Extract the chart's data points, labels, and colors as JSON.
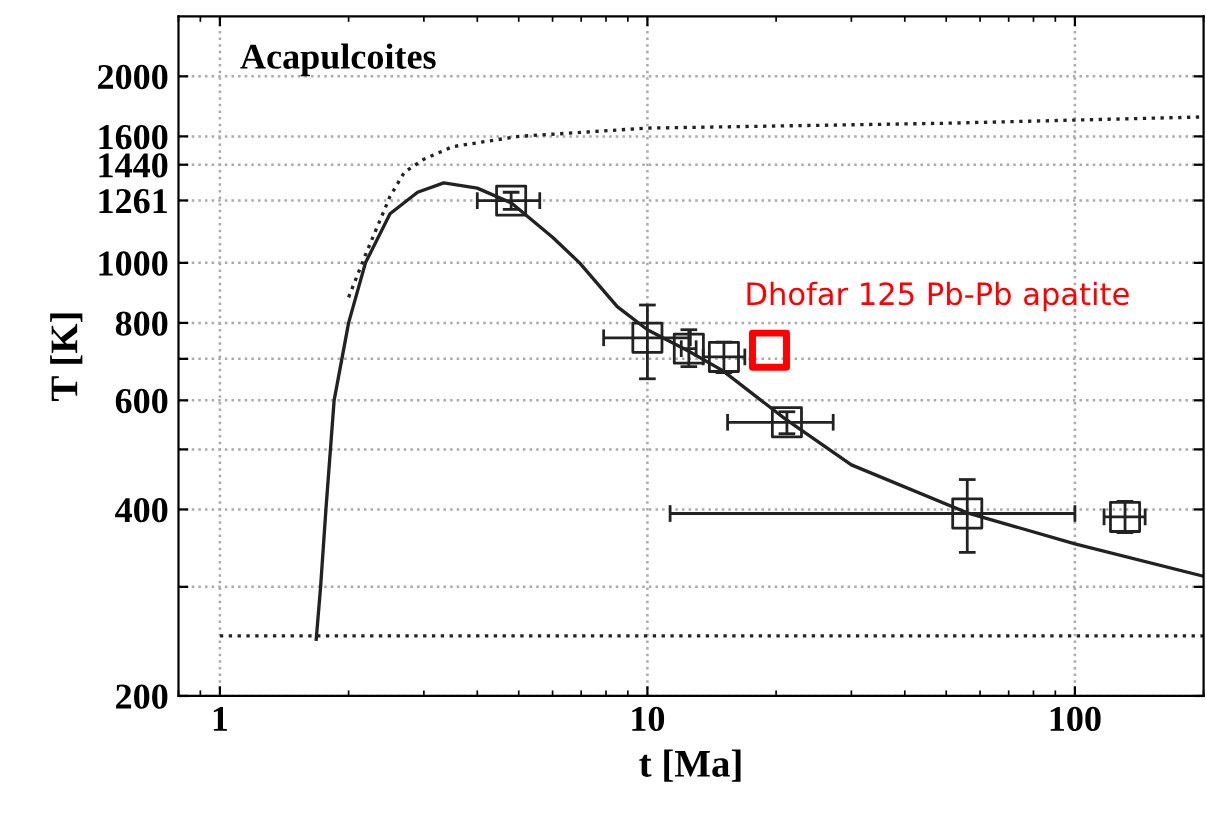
{
  "chart_data": {
    "type": "scatter",
    "xlabel": "t [Ma]",
    "ylabel": "T [K]",
    "annotations": [
      "Acapulcoites"
    ],
    "log": "xy",
    "grid": true,
    "marker": "square",
    "xlim": [
      0.8,
      200
    ],
    "xticks": [
      1,
      10,
      100
    ],
    "ylim": [
      200,
      2500
    ],
    "yticks": [
      200,
      {
        "value": 300,
        "label": null
      },
      400,
      {
        "value": 500,
        "label": null
      },
      600,
      {
        "value": 700,
        "label": null
      },
      800,
      1000,
      1261,
      1440,
      1600,
      2000
    ],
    "series": [
      {
        "type": "line",
        "marker": "none",
        "line_style": "solid",
        "color": "#222222",
        "x": [
          1.68,
          1.72,
          1.77,
          1.85,
          2.0,
          2.19,
          2.5,
          2.9,
          3.34,
          4.0,
          4.8,
          6.0,
          6.94,
          8.5,
          10,
          12.5,
          15,
          21,
          30,
          56,
          100,
          200
        ],
        "values": [
          247,
          300,
          400,
          600,
          800,
          1000,
          1200,
          1300,
          1346,
          1320,
          1250,
          1100,
          1000,
          850,
          780,
          720,
          670,
          560,
          472,
          395,
          352,
          312
        ]
      },
      {
        "type": "line",
        "marker": "none",
        "line_style": "dotted",
        "color": "#222222",
        "x": [
          2.0,
          2.19,
          2.5,
          2.7,
          3.0,
          3.5,
          5,
          10,
          50,
          200
        ],
        "values": [
          880,
          1030,
          1280,
          1400,
          1470,
          1540,
          1600,
          1650,
          1680,
          1720
        ]
      },
      {
        "type": "line",
        "marker": "none",
        "line_style": "dotted",
        "color": "#222222",
        "x": [
          1,
          200
        ],
        "values": [
          250,
          250
        ]
      },
      {
        "color": "#222222",
        "x": [
          4.8,
          10,
          12.5,
          15.1,
          21.2,
          56,
          131
        ],
        "values": [
          1260,
          757,
          727,
          705,
          553,
          394,
          389
        ],
        "errors": [
          [
            1220,
            1300
          ],
          [
            650,
            855
          ],
          [
            680,
            780
          ],
          [
            665,
            745
          ],
          [
            530,
            575
          ],
          [
            341,
            447
          ],
          [
            367,
            412
          ]
        ],
        "xerrors": [
          [
            4.0,
            5.6
          ],
          [
            7.9,
            12.6
          ],
          [
            12.0,
            13.0
          ],
          [
            13.5,
            16.9
          ],
          [
            15.4,
            27.2
          ],
          [
            11.3,
            100
          ],
          [
            117,
            146
          ]
        ]
      },
      {
        "name": "Dhofar 125 Pb-Pb apatite",
        "color": "#ff0000",
        "x": [
          19.3
        ],
        "values": [
          723
        ]
      }
    ]
  }
}
